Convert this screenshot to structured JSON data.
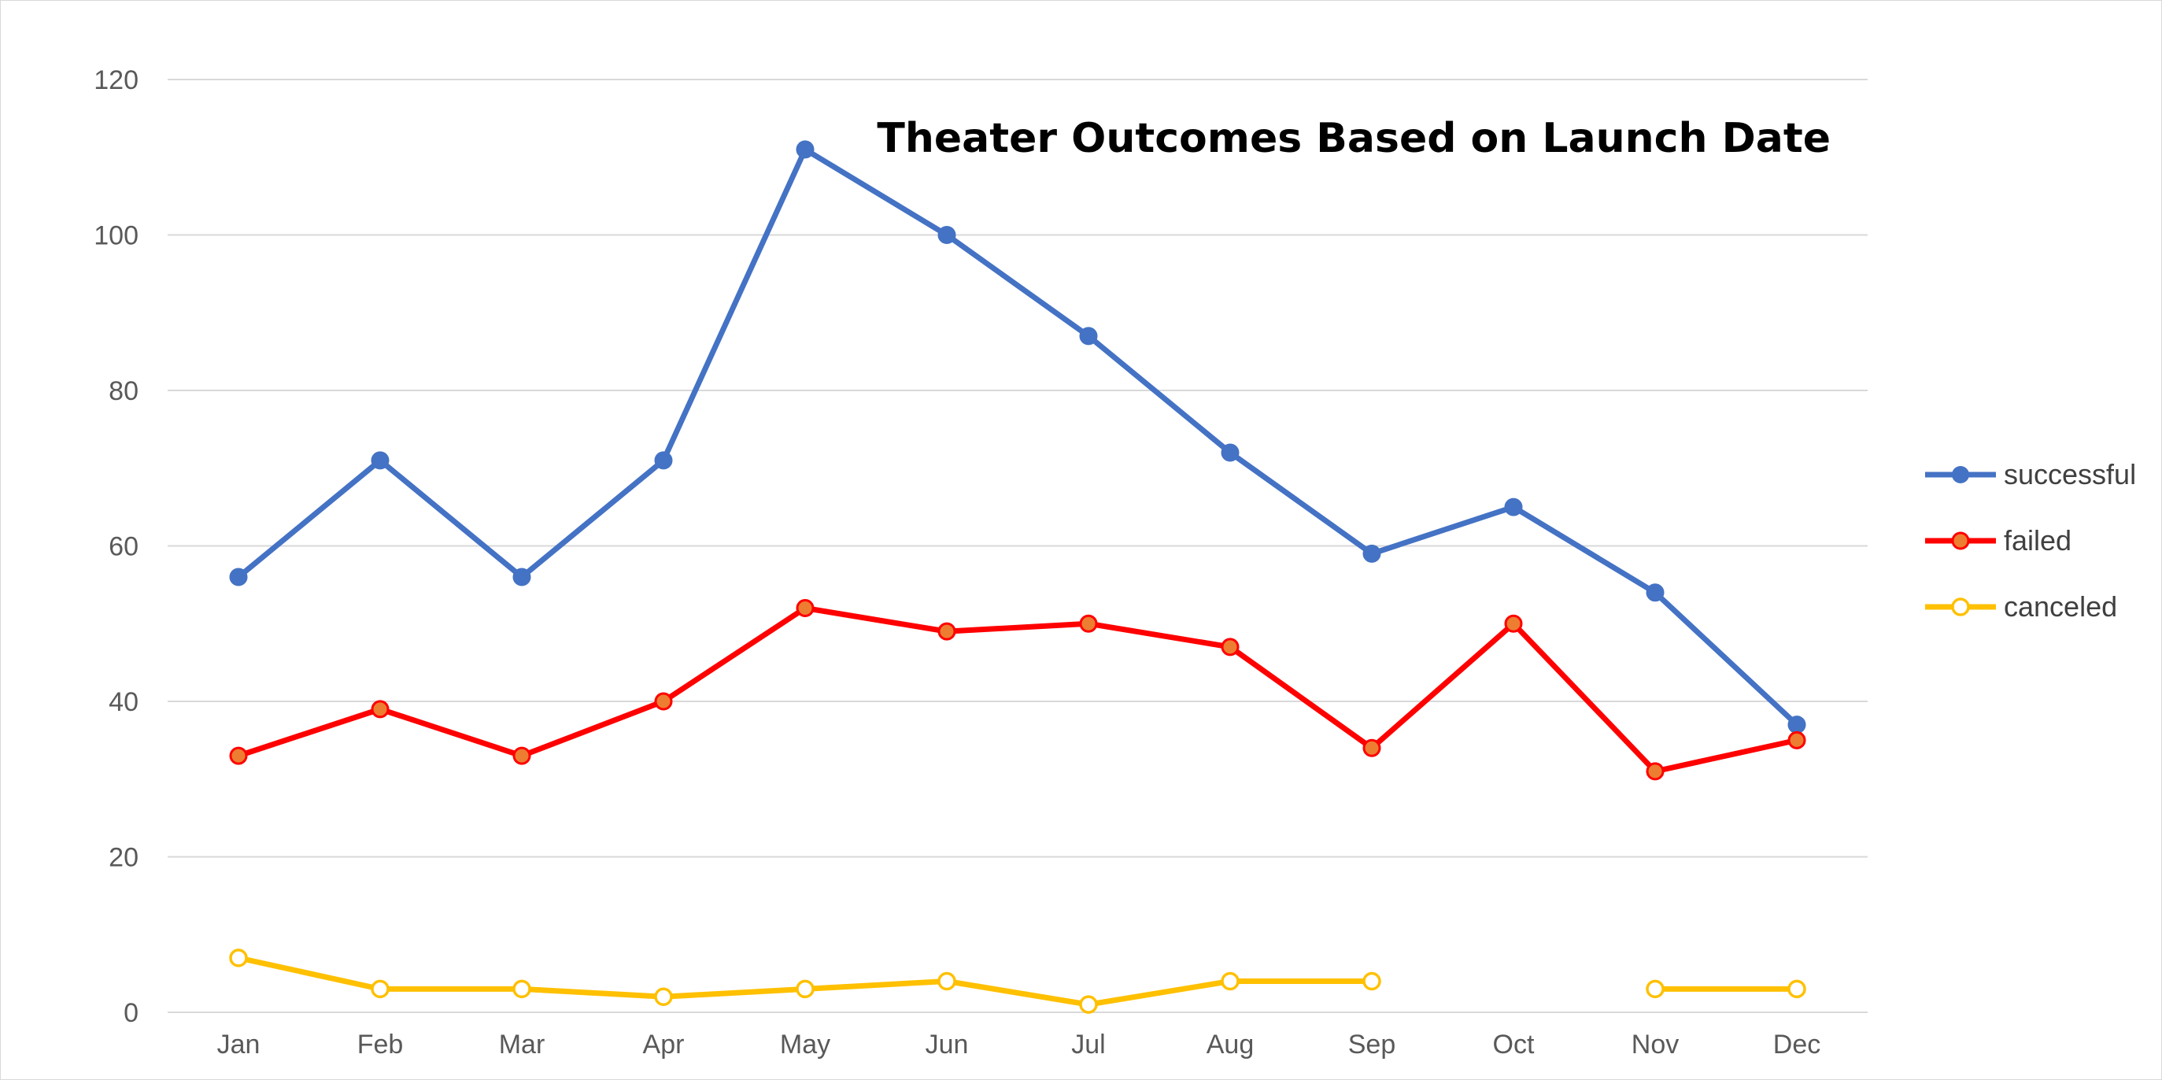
{
  "chart_data": {
    "type": "line",
    "title": "Theater Outcomes Based on Launch Date",
    "xlabel": "",
    "ylabel": "",
    "categories": [
      "Jan",
      "Feb",
      "Mar",
      "Apr",
      "May",
      "Jun",
      "Jul",
      "Aug",
      "Sep",
      "Oct",
      "Nov",
      "Dec"
    ],
    "ylim": [
      0,
      120
    ],
    "yticks": [
      0,
      20,
      40,
      60,
      80,
      100,
      120
    ],
    "grid": true,
    "legend_position": "right",
    "series": [
      {
        "name": "successful",
        "color": "#4472c4",
        "marker": "filled-circle",
        "values": [
          56,
          71,
          56,
          71,
          111,
          100,
          87,
          72,
          59,
          65,
          54,
          37
        ]
      },
      {
        "name": "failed",
        "color": "#ff0000",
        "marker_fill": "#ed7d31",
        "marker": "filled-circle",
        "values": [
          33,
          39,
          33,
          40,
          52,
          49,
          50,
          47,
          34,
          50,
          31,
          35
        ]
      },
      {
        "name": "canceled",
        "color": "#ffc000",
        "marker": "hollow-circle",
        "values": [
          7,
          3,
          3,
          2,
          3,
          4,
          1,
          4,
          4,
          null,
          3,
          3
        ]
      }
    ]
  }
}
